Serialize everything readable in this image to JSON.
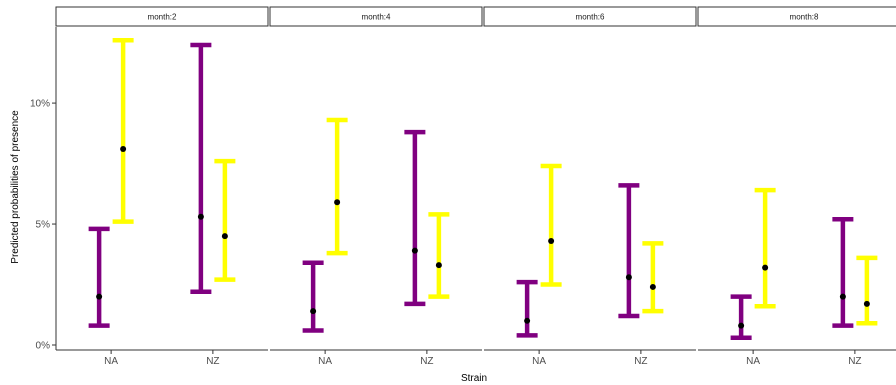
{
  "chart_data": {
    "type": "errorbar",
    "xlabel": "Strain",
    "ylabel": "Predicted probabilities of presence",
    "ylim": [
      0,
      13.6
    ],
    "yticks": [
      0,
      5,
      10
    ],
    "ytick_labels": [
      "0%",
      "5%",
      "10%"
    ],
    "categories": [
      "NA",
      "NZ"
    ],
    "grid": false,
    "legend": "none",
    "series_colors": [
      "#800080",
      "#ffff00"
    ],
    "point_color": "#000000",
    "panels": [
      {
        "title": "month:2",
        "groups": [
          {
            "category": "NA",
            "bars": [
              {
                "estimate": 2.0,
                "low": 0.8,
                "high": 4.8
              },
              {
                "estimate": 8.1,
                "low": 5.1,
                "high": 12.6
              }
            ]
          },
          {
            "category": "NZ",
            "bars": [
              {
                "estimate": 5.3,
                "low": 2.2,
                "high": 12.4
              },
              {
                "estimate": 4.5,
                "low": 2.7,
                "high": 7.6
              }
            ]
          }
        ]
      },
      {
        "title": "month:4",
        "groups": [
          {
            "category": "NA",
            "bars": [
              {
                "estimate": 1.4,
                "low": 0.6,
                "high": 3.4
              },
              {
                "estimate": 5.9,
                "low": 3.8,
                "high": 9.3
              }
            ]
          },
          {
            "category": "NZ",
            "bars": [
              {
                "estimate": 3.9,
                "low": 1.7,
                "high": 8.8
              },
              {
                "estimate": 3.3,
                "low": 2.0,
                "high": 5.4
              }
            ]
          }
        ]
      },
      {
        "title": "month:6",
        "groups": [
          {
            "category": "NA",
            "bars": [
              {
                "estimate": 1.0,
                "low": 0.4,
                "high": 2.6
              },
              {
                "estimate": 4.3,
                "low": 2.5,
                "high": 7.4
              }
            ]
          },
          {
            "category": "NZ",
            "bars": [
              {
                "estimate": 2.8,
                "low": 1.2,
                "high": 6.6
              },
              {
                "estimate": 2.4,
                "low": 1.4,
                "high": 4.2
              }
            ]
          }
        ]
      },
      {
        "title": "month:8",
        "groups": [
          {
            "category": "NA",
            "bars": [
              {
                "estimate": 0.8,
                "low": 0.3,
                "high": 2.0
              },
              {
                "estimate": 3.2,
                "low": 1.6,
                "high": 6.4
              }
            ]
          },
          {
            "category": "NZ",
            "bars": [
              {
                "estimate": 2.0,
                "low": 0.8,
                "high": 5.2
              },
              {
                "estimate": 1.7,
                "low": 0.9,
                "high": 3.6
              }
            ]
          }
        ]
      }
    ]
  }
}
